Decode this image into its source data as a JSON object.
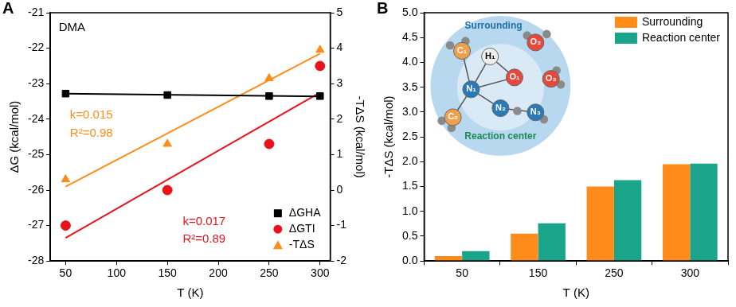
{
  "chart_data": [
    {
      "panel": "A",
      "type": "scatter",
      "x_label": "T (K)",
      "y_label": "ΔG (kcal/mol)",
      "y2_label": "-TΔS (kcal/mol)",
      "xlim": [
        35,
        310
      ],
      "xticks": [
        50,
        100,
        150,
        200,
        250,
        300
      ],
      "ylim": [
        -28,
        -21
      ],
      "yticks": [
        -28,
        -27,
        -26,
        -25,
        -24,
        -23,
        -22,
        -21
      ],
      "y2lim": [
        -2,
        5
      ],
      "y2ticks": [
        -2,
        -1,
        0,
        1,
        2,
        3,
        4,
        5
      ],
      "grid": false,
      "legend": "lower right",
      "x": [
        50,
        150,
        250,
        300
      ],
      "series": [
        {
          "name": "ΔGHA",
          "color": "#000000",
          "marker": "square",
          "values": [
            -23.28,
            -23.32,
            -23.35,
            -23.35
          ],
          "fit": {
            "x": [
              50,
              300
            ],
            "values": [
              -23.28,
              -23.36
            ]
          }
        },
        {
          "name": "ΔGTI",
          "color": "#e8141c",
          "marker": "circle",
          "values": [
            -27.0,
            -26.0,
            -24.7,
            -22.5
          ],
          "fit": {
            "x": [
              50,
              300
            ],
            "values": [
              -27.35,
              -23.25
            ]
          }
        },
        {
          "name": "-TΔS",
          "color": "#ff8c1a",
          "marker": "triangle",
          "axis": "y2",
          "values": [
            0.3,
            1.3,
            3.15,
            3.95
          ],
          "fit": {
            "x": [
              50,
              300
            ],
            "values": [
              0.1,
              3.85
            ]
          }
        }
      ],
      "annotations": [
        {
          "text": "DMA",
          "color": "#000000"
        },
        {
          "text": "k=0.015",
          "color": "#ff8c1a"
        },
        {
          "text": "R²=0.98",
          "color": "#ff8c1a"
        },
        {
          "text": "k=0.017",
          "color": "#e8141c"
        },
        {
          "text": "R²=0.89",
          "color": "#e8141c"
        }
      ]
    },
    {
      "panel": "B",
      "type": "bar",
      "x_label": "T (K)",
      "y_label": "-TΔS (kcal/mol)",
      "categories": [
        "50",
        "150",
        "250",
        "300"
      ],
      "ylim": [
        0,
        5
      ],
      "yticks": [
        {
          "value": 0,
          "label": "0.0"
        },
        {
          "value": 0.5,
          "label": "0.5"
        },
        {
          "value": 1,
          "label": "1.0"
        },
        {
          "value": 1.5,
          "label": "1.5"
        },
        {
          "value": 2,
          "label": "2.0"
        },
        {
          "value": 2.5,
          "label": "2.5"
        },
        {
          "value": 3,
          "label": "3.0"
        },
        {
          "value": 3.5,
          "label": "3.5"
        },
        {
          "value": 4,
          "label": "4.0"
        },
        {
          "value": 4.5,
          "label": "4.5"
        },
        {
          "value": 5,
          "label": "5.0"
        }
      ],
      "grid": false,
      "legend": "upper right",
      "series": [
        {
          "name": "Surrounding",
          "color": "#ff8c1a",
          "values": [
            0.1,
            0.55,
            1.5,
            1.95
          ]
        },
        {
          "name": "Reaction center",
          "color": "#1aa58a",
          "values": [
            0.2,
            0.76,
            1.63,
            1.96
          ]
        }
      ],
      "inset": {
        "outer_label": "Surrounding",
        "inner_label": "Reaction center",
        "atoms": [
          "H₁",
          "O₁",
          "N₁",
          "N₂",
          "N₃",
          "C₁",
          "C₂",
          "O₂",
          "O₃"
        ]
      }
    }
  ]
}
